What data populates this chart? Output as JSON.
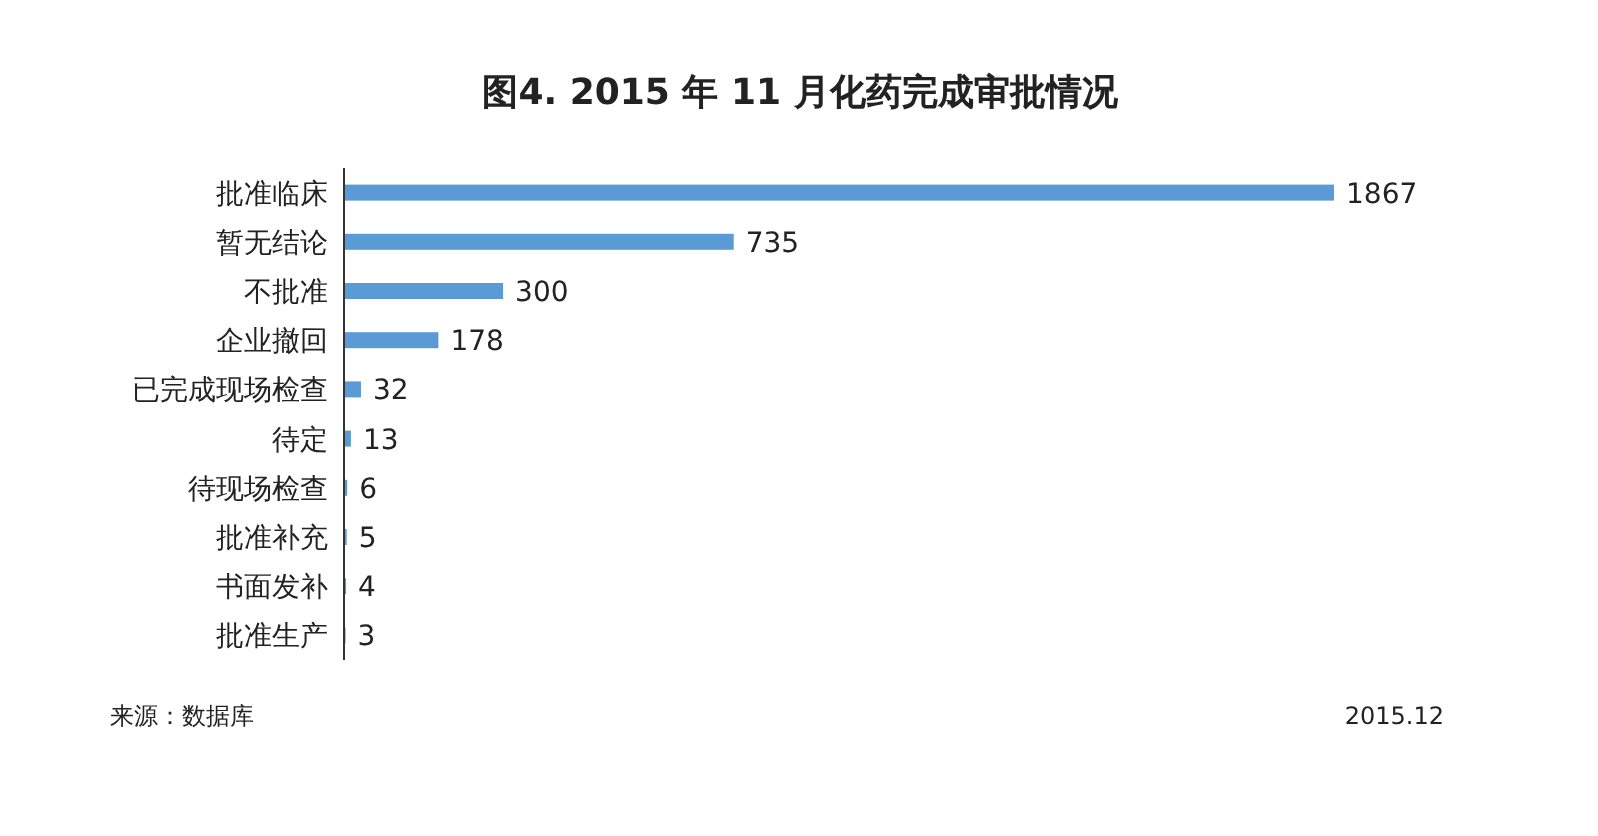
{
  "chart_data": {
    "type": "bar",
    "orientation": "horizontal",
    "title": "图4. 2015 年 11 月化药完成审批情况",
    "categories": [
      "批准临床",
      "暂无结论",
      "不批准",
      "企业撤回",
      "已完成现场检查",
      "待定",
      "待现场检查",
      "批准补充",
      "书面发补",
      "批准生产"
    ],
    "values": [
      1867,
      735,
      300,
      178,
      32,
      13,
      6,
      5,
      4,
      3
    ],
    "color": "#5b9bd5",
    "data_labels": true,
    "annotations": [
      "来源：数据库",
      "2015.12"
    ]
  }
}
